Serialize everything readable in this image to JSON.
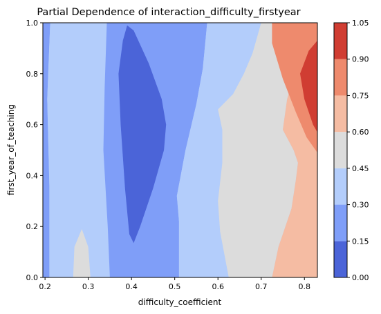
{
  "chart_data": {
    "type": "heatmap",
    "title": "Partial Dependence of interaction_difficulty_firstyear",
    "xlabel": "difficulty_coefficient",
    "ylabel": "first_year_of_teaching",
    "xlim": [
      0.195,
      0.83
    ],
    "ylim": [
      0.0,
      1.0
    ],
    "x_ticks": [
      0.2,
      0.3,
      0.4,
      0.5,
      0.6,
      0.7,
      0.8
    ],
    "x_tick_labels": [
      "0.2",
      "0.3",
      "0.4",
      "0.5",
      "0.6",
      "0.7",
      "0.8"
    ],
    "y_ticks": [
      0.0,
      0.2,
      0.4,
      0.6,
      0.8,
      1.0
    ],
    "y_tick_labels": [
      "0.0",
      "0.2",
      "0.4",
      "0.6",
      "0.8",
      "1.0"
    ],
    "colorbar": {
      "levels": [
        0.0,
        0.15,
        0.3,
        0.45,
        0.6,
        0.75,
        0.9,
        1.05
      ],
      "tick_labels": [
        "0.00",
        "0.15",
        "0.30",
        "0.45",
        "0.60",
        "0.75",
        "0.90",
        "1.05"
      ],
      "colors": [
        "#4b64d8",
        "#7f9ef8",
        "#b3cdfb",
        "#dcdcdc",
        "#f5bca3",
        "#ee8a6d",
        "#d03d32"
      ]
    },
    "regions": [
      {
        "level_index": 1,
        "range": [
          0.15,
          0.3
        ],
        "outline": [
          [
            0.195,
            0.0
          ],
          [
            0.21,
            0.0
          ],
          [
            0.21,
            0.36
          ],
          [
            0.205,
            0.7
          ],
          [
            0.212,
            1.0
          ],
          [
            0.195,
            1.0
          ]
        ]
      },
      {
        "level_index": 2,
        "range": [
          0.3,
          0.45
        ],
        "outline": [
          [
            0.21,
            0.0
          ],
          [
            0.265,
            0.0
          ],
          [
            0.268,
            0.12
          ],
          [
            0.285,
            0.19
          ],
          [
            0.3,
            0.12
          ],
          [
            0.305,
            0.0
          ],
          [
            0.35,
            0.0
          ],
          [
            0.345,
            0.2
          ],
          [
            0.335,
            0.5
          ],
          [
            0.338,
            0.75
          ],
          [
            0.343,
            1.0
          ],
          [
            0.212,
            1.0
          ],
          [
            0.205,
            0.7
          ],
          [
            0.21,
            0.36
          ]
        ]
      },
      {
        "level_index": 3,
        "range": [
          0.45,
          0.6
        ],
        "outline": [
          [
            0.265,
            0.0
          ],
          [
            0.305,
            0.0
          ],
          [
            0.3,
            0.12
          ],
          [
            0.285,
            0.19
          ],
          [
            0.268,
            0.12
          ]
        ]
      },
      {
        "level_index": 1,
        "range": [
          0.15,
          0.3
        ],
        "outline": [
          [
            0.35,
            0.0
          ],
          [
            0.51,
            0.0
          ],
          [
            0.51,
            0.22
          ],
          [
            0.505,
            0.32
          ],
          [
            0.525,
            0.5
          ],
          [
            0.55,
            0.68
          ],
          [
            0.565,
            0.82
          ],
          [
            0.575,
            1.0
          ],
          [
            0.343,
            1.0
          ],
          [
            0.338,
            0.75
          ],
          [
            0.335,
            0.5
          ],
          [
            0.345,
            0.2
          ]
        ]
      },
      {
        "level_index": 0,
        "range": [
          0.0,
          0.15
        ],
        "outline": [
          [
            0.37,
            0.8
          ],
          [
            0.38,
            0.93
          ],
          [
            0.39,
            0.99
          ],
          [
            0.405,
            0.97
          ],
          [
            0.44,
            0.84
          ],
          [
            0.47,
            0.7
          ],
          [
            0.48,
            0.6
          ],
          [
            0.475,
            0.5
          ],
          [
            0.45,
            0.35
          ],
          [
            0.42,
            0.2
          ],
          [
            0.405,
            0.135
          ],
          [
            0.395,
            0.17
          ],
          [
            0.385,
            0.35
          ],
          [
            0.375,
            0.6
          ]
        ]
      },
      {
        "level_index": 2,
        "range": [
          0.3,
          0.45
        ],
        "outline": [
          [
            0.51,
            0.0
          ],
          [
            0.625,
            0.0
          ],
          [
            0.605,
            0.18
          ],
          [
            0.6,
            0.3
          ],
          [
            0.61,
            0.45
          ],
          [
            0.61,
            0.58
          ],
          [
            0.6,
            0.66
          ],
          [
            0.635,
            0.72
          ],
          [
            0.66,
            0.8
          ],
          [
            0.68,
            0.88
          ],
          [
            0.7,
            1.0
          ],
          [
            0.575,
            1.0
          ],
          [
            0.565,
            0.82
          ],
          [
            0.55,
            0.68
          ],
          [
            0.525,
            0.5
          ],
          [
            0.505,
            0.32
          ],
          [
            0.51,
            0.22
          ]
        ]
      },
      {
        "level_index": 3,
        "range": [
          0.45,
          0.6
        ],
        "outline": [
          [
            0.625,
            0.0
          ],
          [
            0.725,
            0.0
          ],
          [
            0.74,
            0.12
          ],
          [
            0.77,
            0.27
          ],
          [
            0.78,
            0.38
          ],
          [
            0.785,
            0.45
          ],
          [
            0.775,
            0.5
          ],
          [
            0.75,
            0.58
          ],
          [
            0.76,
            0.7
          ],
          [
            0.78,
            0.82
          ],
          [
            0.79,
            0.9
          ],
          [
            0.805,
            1.0
          ],
          [
            0.7,
            1.0
          ],
          [
            0.68,
            0.88
          ],
          [
            0.66,
            0.8
          ],
          [
            0.635,
            0.72
          ],
          [
            0.6,
            0.66
          ],
          [
            0.61,
            0.58
          ],
          [
            0.61,
            0.45
          ],
          [
            0.6,
            0.3
          ],
          [
            0.605,
            0.18
          ]
        ]
      },
      {
        "level_index": 4,
        "range": [
          0.6,
          0.75
        ],
        "outline": [
          [
            0.725,
            0.0
          ],
          [
            0.83,
            0.0
          ],
          [
            0.83,
            1.0
          ],
          [
            0.805,
            1.0
          ],
          [
            0.79,
            0.9
          ],
          [
            0.78,
            0.82
          ],
          [
            0.76,
            0.7
          ],
          [
            0.75,
            0.58
          ],
          [
            0.775,
            0.5
          ],
          [
            0.785,
            0.45
          ],
          [
            0.78,
            0.38
          ],
          [
            0.77,
            0.27
          ],
          [
            0.74,
            0.12
          ]
        ]
      },
      {
        "level_index": 5,
        "range": [
          0.75,
          0.9
        ],
        "outline": [
          [
            0.725,
            1.0
          ],
          [
            0.725,
            0.92
          ],
          [
            0.75,
            0.78
          ],
          [
            0.78,
            0.65
          ],
          [
            0.805,
            0.55
          ],
          [
            0.83,
            0.49
          ],
          [
            0.83,
            1.0
          ]
        ]
      },
      {
        "level_index": 6,
        "range": [
          0.9,
          1.05
        ],
        "outline": [
          [
            0.83,
            0.93
          ],
          [
            0.81,
            0.89
          ],
          [
            0.79,
            0.8
          ],
          [
            0.8,
            0.7
          ],
          [
            0.82,
            0.6
          ],
          [
            0.83,
            0.57
          ]
        ]
      },
      {
        "level_index": 4,
        "range": [
          0.6,
          0.75
        ],
        "outline": [
          [
            0.812,
            0.0
          ],
          [
            0.83,
            0.0
          ],
          [
            0.83,
            0.05
          ]
        ]
      }
    ]
  }
}
